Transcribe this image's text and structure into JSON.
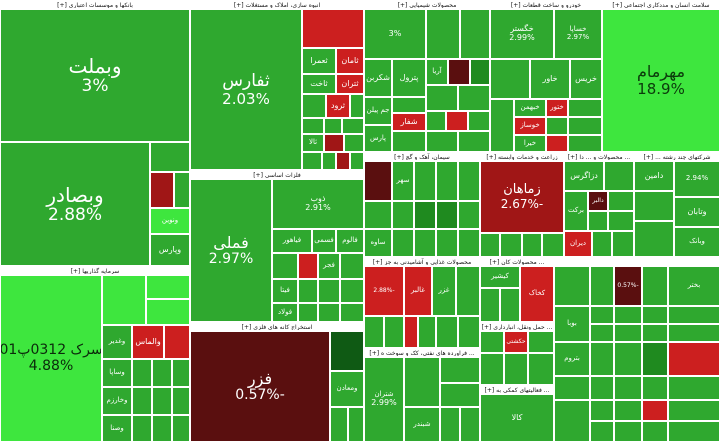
{
  "colors": {
    "dark_green": "#1f8a1f",
    "green": "#2fa82f",
    "mid_green": "#35b535",
    "bright_green": "#3ee63e",
    "light_green": "#52d452",
    "dark_red": "#5a0f0f",
    "red": "#a01616",
    "bright_red": "#cc1f1f",
    "darkest_green": "#0f5a14"
  },
  "sectors": [
    {
      "label": "بانکها و موسسات اعتباری [+]"
    },
    {
      "label": "انبوه سازی، املاک و مستغلات [+]"
    },
    {
      "label": "محصولات شیمیایی [+]"
    },
    {
      "label": "خودرو و ساخت قطعات [+]"
    },
    {
      "label": "سلامت انسان و مددکاری اجتماعی [+]"
    },
    {
      "label": "سرمایه گذاریها [+]"
    },
    {
      "label": "فلزات اساسی [+]"
    },
    {
      "label": "سیمان، آهک و گچ [+]"
    },
    {
      "label": "زراعت و خدمات وابسته [+]"
    },
    {
      "label": "... محصولات و ... دا [+]"
    },
    {
      "label": "... سواد و ... [+]"
    },
    {
      "label": "شرکتهای چند رشته ... [+]"
    },
    {
      "label": "استخراج کانه های فلزی [+]"
    },
    {
      "label": "محصولات غذایی و آشامیدنی به جز [+]"
    },
    {
      "label": "... محصولات کان [+]"
    },
    {
      "label": "... فراورده های نفتی، کک و سوخت ه [+]"
    },
    {
      "label": "... حمل ونقل، انبارداری [+]"
    },
    {
      "label": "... فعالیتهای کمکی به [+]"
    }
  ],
  "tiles": {
    "vbemellat": {
      "name": "وبملت",
      "pct": "3%"
    },
    "vbsader": {
      "name": "وبصادر",
      "pct": "2.88%"
    },
    "vbnovin": {
      "name": "ونوین",
      "pct": ""
    },
    "vparsian": {
      "name": "وپارس",
      "pct": ""
    },
    "sefares": {
      "name": "ثفارس",
      "pct": "2.03%"
    },
    "tamarz": {
      "name": "ثامان",
      "pct": ""
    },
    "taamir": {
      "name": "ثعمرا",
      "pct": ""
    },
    "tahet": {
      "name": "ثاخت",
      "pct": ""
    },
    "tazran": {
      "name": "ثتران",
      "pct": ""
    },
    "tarood": {
      "name": "ثرود",
      "pct": ""
    },
    "tabali": {
      "name": "ثالا",
      "pct": ""
    },
    "shebandar": {
      "name": "شبندر",
      "pct": "3%"
    },
    "sharvand": {
      "name": "شاروند",
      "pct": ""
    },
    "sheykar": {
      "name": "شکربن",
      "pct": ""
    },
    "shepetrol": {
      "name": "پترول",
      "pct": ""
    },
    "shearya": {
      "name": "آریا",
      "pct": ""
    },
    "shpiran": {
      "name": "جم پیلن",
      "pct": ""
    },
    "shpars": {
      "name": "پارس",
      "pct": ""
    },
    "shshafar": {
      "name": "شفار",
      "pct": ""
    },
    "khegostar": {
      "name": "خگستر",
      "pct": "2.99%"
    },
    "khesapa": {
      "name": "خساپا",
      "pct": "2.97%"
    },
    "khavar": {
      "name": "خاور",
      "pct": ""
    },
    "kheris": {
      "name": "خریس",
      "pct": ""
    },
    "khobahman": {
      "name": "خبهمن",
      "pct": ""
    },
    "khozhan": {
      "name": "ختور",
      "pct": ""
    },
    "khodaham": {
      "name": "خوساز",
      "pct": ""
    },
    "kheran": {
      "name": "خیرا",
      "pct": ""
    },
    "mohremam": {
      "name": "مهرمام",
      "pct": "18.9%"
    },
    "serek": {
      "name": "سرک 0312پ01",
      "pct": "4.88%"
    },
    "vaghani": {
      "name": "والماس",
      "pct": ""
    },
    "vaghadir": {
      "name": "وغدیر",
      "pct": ""
    },
    "vasapa": {
      "name": "وساپا",
      "pct": ""
    },
    "vakharazm": {
      "name": "وخارزم",
      "pct": ""
    },
    "vabahman": {
      "name": "وبهمن",
      "pct": ""
    },
    "vasena": {
      "name": "وصنا",
      "pct": ""
    },
    "vatoos": {
      "name": "وتوس",
      "pct": ""
    },
    "vamadan": {
      "name": "ومعادن",
      "pct": ""
    },
    "fameli": {
      "name": "فملی",
      "pct": "2.97%"
    },
    "zob": {
      "name": "ذوب",
      "pct": "2.91%"
    },
    "fakhooz": {
      "name": "فخوز",
      "pct": ""
    },
    "fasmi": {
      "name": "فسمی",
      "pct": ""
    },
    "faamal": {
      "name": "فولاژ",
      "pct": ""
    },
    "faolad": {
      "name": "فولاد",
      "pct": ""
    },
    "fasapa": {
      "name": "فسپا",
      "pct": ""
    },
    "falam": {
      "name": "فالوم",
      "pct": ""
    },
    "fahnar": {
      "name": "فجر",
      "pct": ""
    },
    "fenvard": {
      "name": "فنورد",
      "pct": ""
    },
    "fayata": {
      "name": "فیتا",
      "pct": ""
    },
    "feraz": {
      "name": "فیاهور",
      "pct": ""
    },
    "farzar": {
      "name": "فرزر",
      "pct": ""
    },
    "fezar": {
      "name": "فزر",
      "pct": ""
    },
    "farzar2": {
      "name": "فرزر",
      "pct": "-0.57%"
    },
    "fdanesh": {
      "name": "فدانش",
      "pct": ""
    },
    "ksaveh": {
      "name": "ساوه",
      "pct": ""
    },
    "ksahar": {
      "name": "سهر",
      "pct": ""
    },
    "kbandar": {
      "name": "سرود",
      "pct": ""
    },
    "kshar": {
      "name": "ساربیل",
      "pct": ""
    },
    "zamahan": {
      "name": "زماهان",
      "pct": "-2.67%"
    },
    "zagros": {
      "name": "دزاگرس",
      "pct": ""
    },
    "dabidan": {
      "name": "دعبید",
      "pct": ""
    },
    "dalar": {
      "name": "دالبر",
      "pct": ""
    },
    "barkat": {
      "name": "برکت",
      "pct": ""
    },
    "daran": {
      "name": "دیران",
      "pct": ""
    },
    "damin": {
      "name": "دامین",
      "pct": ""
    },
    "vbankom": {
      "name": "وبانکم",
      "pct": "2.94%"
    },
    "vtaban": {
      "name": "وتابان",
      "pct": ""
    },
    "vsabd": {
      "name": "وبانک",
      "pct": ""
    },
    "ghgolpa": {
      "name": "غگلپا",
      "pct": ""
    },
    "ghzar": {
      "name": "غزر",
      "pct": ""
    },
    "gharb": {
      "name": "غبهار",
      "pct": ""
    },
    "ghalbar": {
      "name": "غالبر",
      "pct": ""
    },
    "kakhsh": {
      "name": "کخاک",
      "pct": ""
    },
    "kishir": {
      "name": "کیشیر",
      "pct": ""
    },
    "kaama": {
      "name": "کاما",
      "pct": ""
    },
    "hekshtiran": {
      "name": "حکشتی",
      "pct": ""
    },
    "hafar": {
      "name": "حفار",
      "pct": ""
    },
    "hatoopo": {
      "name": "حتوکا",
      "pct": ""
    },
    "shtran": {
      "name": "شتران",
      "pct": "2.99%"
    },
    "shbandar": {
      "name": "شبندر",
      "pct": ""
    },
    "shanaft": {
      "name": "شنفت",
      "pct": ""
    },
    "shaspa": {
      "name": "شسپا",
      "pct": ""
    },
    "sghazvin": {
      "name": "وکغدیر",
      "pct": ""
    },
    "btroom": {
      "name": "بتروم",
      "pct": ""
    },
    "bnahoor": {
      "name": "بنهور",
      "pct": ""
    },
    "kalar": {
      "name": "کالا",
      "pct": ""
    },
    "babr": {
      "name": "بانیرو",
      "pct": ""
    },
    "bahgoor": {
      "name": "بهپور",
      "pct": ""
    },
    "boyaba": {
      "name": "بوبا",
      "pct": ""
    },
    "bakhtar": {
      "name": "بختر",
      "pct": ""
    },
    "hdanesh": {
      "name": "حدانش",
      "pct": ""
    },
    "small_pct_1": {
      "name": "",
      "pct": "-2.88%"
    },
    "small_pct_2": {
      "name": "",
      "pct": "-0.57%"
    },
    "small_pct_3": {
      "name": "",
      "pct": "-3%"
    }
  }
}
